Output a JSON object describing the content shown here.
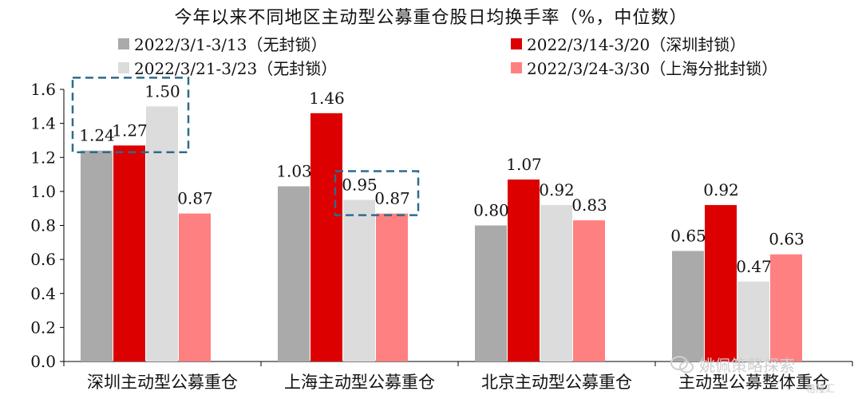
{
  "chart_data": {
    "type": "bar",
    "title": "今年以来不同地区主动型公募重仓股日均换手率（%，中位数）",
    "categories": [
      "深圳主动型公募重仓",
      "上海主动型公募重仓",
      "北京主动型公募重仓",
      "主动型公募整体重仓"
    ],
    "series": [
      {
        "name": "2022/3/1-3/13（无封锁）",
        "color": "#aaaaaa",
        "values": [
          1.24,
          1.03,
          0.8,
          0.65
        ]
      },
      {
        "name": "2022/3/14-3/20（深圳封锁）",
        "color": "#dd0000",
        "values": [
          1.27,
          1.46,
          1.07,
          0.92
        ]
      },
      {
        "name": "2022/3/21-3/23（无封锁）",
        "color": "#dcdcdc",
        "values": [
          1.5,
          0.95,
          0.92,
          0.47
        ]
      },
      {
        "name": "2022/3/24-3/30（上海分批封锁）",
        "color": "#ff8080",
        "values": [
          0.87,
          0.87,
          0.83,
          0.63
        ]
      }
    ],
    "ylim": [
      0,
      1.6
    ],
    "yticks": [
      "0.0",
      "0.2",
      "0.4",
      "0.6",
      "0.8",
      "1.0",
      "1.2",
      "1.4",
      "1.6"
    ],
    "highlight_boxes": [
      {
        "category_index": 0,
        "series_from": 0,
        "series_to": 2
      },
      {
        "category_index": 1,
        "series_from": 2,
        "series_to": 3
      }
    ],
    "legend_position": "top",
    "grid": false
  },
  "watermark": {
    "text": "姚佩策略探索",
    "sub": "格隆汇"
  }
}
